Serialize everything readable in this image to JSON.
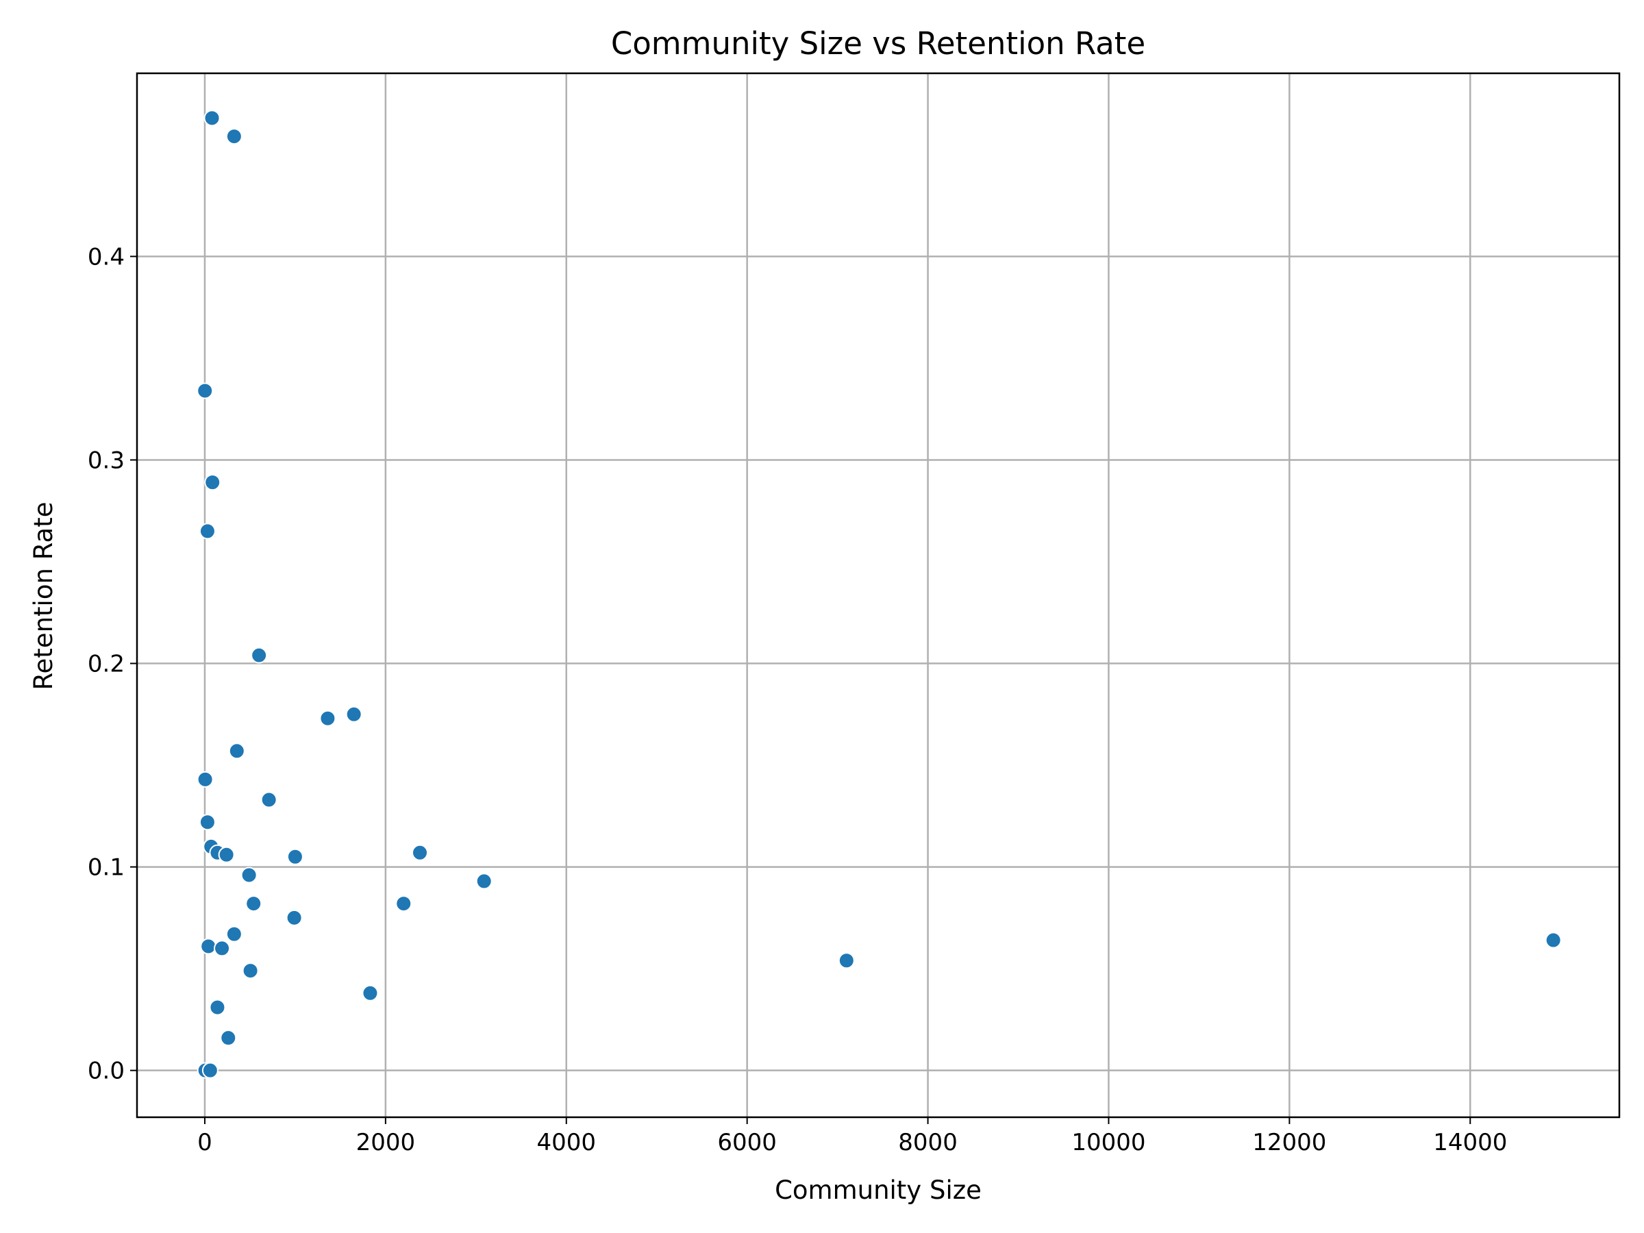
{
  "chart_data": {
    "type": "scatter",
    "title": "Community Size vs Retention Rate",
    "xlabel": "Community Size",
    "ylabel": "Retention Rate",
    "xlim": [
      -750,
      15650
    ],
    "ylim": [
      -0.023,
      0.49
    ],
    "xticks": [
      0,
      2000,
      4000,
      6000,
      8000,
      10000,
      12000,
      14000
    ],
    "xtick_labels": [
      "0",
      "2000",
      "4000",
      "6000",
      "8000",
      "10000",
      "12000",
      "14000"
    ],
    "yticks": [
      0.0,
      0.1,
      0.2,
      0.3,
      0.4
    ],
    "ytick_labels": [
      "0.0",
      "0.1",
      "0.2",
      "0.3",
      "0.4"
    ],
    "grid": true,
    "color": "#1f77b4",
    "series": [
      {
        "points": [
          {
            "x": 80,
            "y": 0.468
          },
          {
            "x": 325,
            "y": 0.459
          },
          {
            "x": 2,
            "y": 0.334
          },
          {
            "x": 85,
            "y": 0.289
          },
          {
            "x": 30,
            "y": 0.265
          },
          {
            "x": 600,
            "y": 0.204
          },
          {
            "x": 1360,
            "y": 0.173
          },
          {
            "x": 1650,
            "y": 0.175
          },
          {
            "x": 355,
            "y": 0.157
          },
          {
            "x": 5,
            "y": 0.143
          },
          {
            "x": 710,
            "y": 0.133
          },
          {
            "x": 30,
            "y": 0.122
          },
          {
            "x": 70,
            "y": 0.11
          },
          {
            "x": 140,
            "y": 0.107
          },
          {
            "x": 240,
            "y": 0.106
          },
          {
            "x": 2380,
            "y": 0.107
          },
          {
            "x": 1000,
            "y": 0.105
          },
          {
            "x": 490,
            "y": 0.096
          },
          {
            "x": 3090,
            "y": 0.093
          },
          {
            "x": 540,
            "y": 0.082
          },
          {
            "x": 2200,
            "y": 0.082
          },
          {
            "x": 990,
            "y": 0.075
          },
          {
            "x": 325,
            "y": 0.067
          },
          {
            "x": 40,
            "y": 0.061
          },
          {
            "x": 190,
            "y": 0.06
          },
          {
            "x": 14920,
            "y": 0.064
          },
          {
            "x": 7100,
            "y": 0.054
          },
          {
            "x": 505,
            "y": 0.049
          },
          {
            "x": 1830,
            "y": 0.038
          },
          {
            "x": 140,
            "y": 0.031
          },
          {
            "x": 260,
            "y": 0.016
          },
          {
            "x": 5,
            "y": 0.0
          },
          {
            "x": 60,
            "y": 0.0
          }
        ]
      }
    ]
  }
}
